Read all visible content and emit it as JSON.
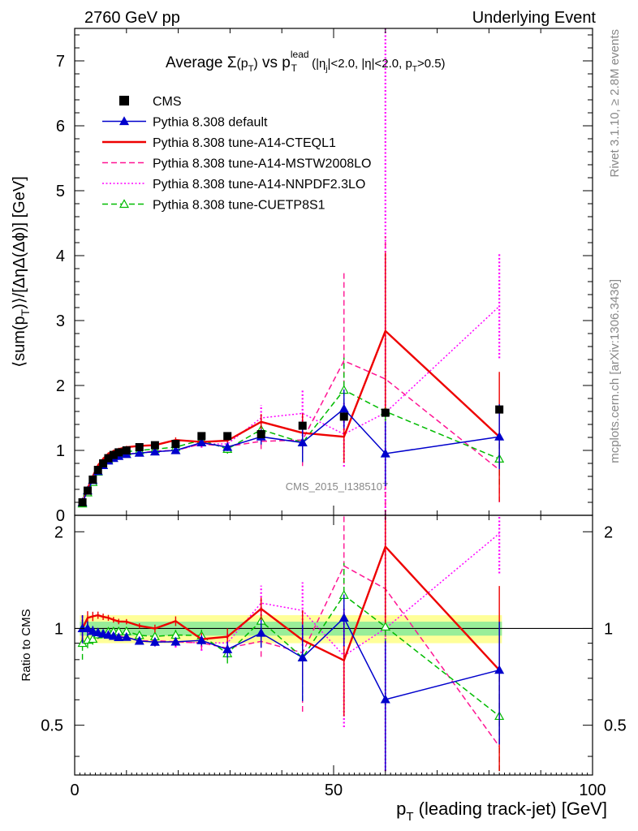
{
  "header": {
    "left": "2760 GeV pp",
    "right": "Underlying Event"
  },
  "side_labels": {
    "rivet": "Rivet 3.1.10, ≥ 2.8M events",
    "mcplots": "mcplots.cern.ch [arXiv:1306.3436]"
  },
  "watermark": "CMS_2015_I1385107",
  "chart_data": {
    "type": "line",
    "title": {
      "pre": "Average ",
      "sigma": "Σ",
      "pt_open": "(p",
      "pt_sub": "T",
      "pt_close": ")",
      "vs": " vs p",
      "lead_sup": "lead",
      "lead_sub": "T",
      "cuts1": " (|η",
      "cuts_sub_j": "j",
      "cuts2": "|<2.0, |η|<2.0, p",
      "cuts_sub_t": "T",
      "cuts3": ">0.5)"
    },
    "ylabel": {
      "open": "⟨sum(p",
      "sub": "T",
      "close": ")⟩/[ΔηΔ(Δϕ)] [GeV]"
    },
    "ratio_ylabel": "Ratio to CMS",
    "xlabel": {
      "p": "p",
      "sub": "T",
      "rest": " (leading track-jet) [GeV]"
    },
    "xlim": [
      0,
      100
    ],
    "ylim": [
      0,
      7.5
    ],
    "ratio_ylim": [
      0.35,
      2.25
    ],
    "x_ticks": [
      "0",
      "50",
      "100"
    ],
    "y_ticks": [
      "0",
      "1",
      "2",
      "3",
      "4",
      "5",
      "6",
      "7"
    ],
    "ratio_y_ticks": [
      "0.5",
      "1",
      "2"
    ],
    "ratio_band": {
      "green": [
        0.95,
        1.05
      ],
      "yellow": [
        0.9,
        1.1
      ]
    },
    "x": [
      1.5,
      2.5,
      3.5,
      4.5,
      5.5,
      6.5,
      7.5,
      8.5,
      10,
      12.5,
      15.5,
      19.5,
      24.5,
      29.5,
      36,
      44,
      52,
      60,
      82
    ],
    "data": {
      "name": "CMS",
      "values": [
        0.2,
        0.38,
        0.55,
        0.7,
        0.8,
        0.88,
        0.93,
        0.97,
        1.0,
        1.05,
        1.08,
        1.1,
        1.22,
        1.22,
        1.25,
        1.38,
        1.52,
        1.58,
        1.63
      ]
    },
    "series": [
      {
        "name": "Pythia 8.308 default",
        "color": "#0000cc",
        "style": "solid",
        "marker": "triangle-filled",
        "values": [
          0.2,
          0.38,
          0.54,
          0.68,
          0.77,
          0.84,
          0.88,
          0.91,
          0.94,
          0.96,
          0.98,
          1.0,
          1.12,
          1.05,
          1.21,
          1.12,
          1.64,
          0.95,
          1.21
        ],
        "errors": [
          0.02,
          0.02,
          0.02,
          0.02,
          0.02,
          0.02,
          0.02,
          0.02,
          0.02,
          0.02,
          0.03,
          0.03,
          0.04,
          0.06,
          0.12,
          0.3,
          0.3,
          0.5,
          0.5
        ]
      },
      {
        "name": "Pythia 8.308 tune-A14-CTEQL1",
        "color": "#ee0000",
        "style": "solid",
        "marker": "none",
        "values": [
          0.2,
          0.41,
          0.6,
          0.77,
          0.87,
          0.95,
          0.99,
          1.02,
          1.05,
          1.07,
          1.08,
          1.16,
          1.13,
          1.15,
          1.44,
          1.27,
          1.21,
          2.84,
          1.21
        ],
        "errors": [
          0.02,
          0.02,
          0.02,
          0.02,
          0.02,
          0.02,
          0.02,
          0.02,
          0.02,
          0.02,
          0.03,
          0.04,
          0.05,
          0.07,
          0.12,
          0.3,
          0.4,
          1.2,
          1.0
        ]
      },
      {
        "name": "Pythia 8.308 tune-A14-MSTW2008LO",
        "color": "#ff1493",
        "style": "dashed",
        "marker": "none",
        "values": [
          0.2,
          0.37,
          0.53,
          0.67,
          0.77,
          0.84,
          0.88,
          0.92,
          0.94,
          0.96,
          0.99,
          1.0,
          1.1,
          1.06,
          1.14,
          1.16,
          2.38,
          2.1,
          0.7
        ],
        "errors": [
          0.02,
          0.02,
          0.02,
          0.02,
          0.02,
          0.02,
          0.02,
          0.02,
          0.02,
          0.02,
          0.03,
          0.03,
          0.05,
          0.07,
          0.12,
          0.4,
          1.35,
          2.2,
          0.5
        ]
      },
      {
        "name": "Pythia 8.308 tune-A14-NNPDF2.3LO",
        "color": "#ff00ff",
        "style": "dotted",
        "marker": "none",
        "values": [
          0.2,
          0.37,
          0.53,
          0.67,
          0.77,
          0.84,
          0.88,
          0.92,
          0.94,
          0.96,
          0.98,
          1.0,
          1.1,
          1.1,
          1.5,
          1.57,
          1.25,
          1.58,
          3.22
        ],
        "errors": [
          0.02,
          0.02,
          0.02,
          0.02,
          0.02,
          0.02,
          0.02,
          0.02,
          0.02,
          0.02,
          0.03,
          0.04,
          0.06,
          0.08,
          0.2,
          0.35,
          0.5,
          6.0,
          0.8
        ]
      },
      {
        "name": "Pythia 8.308 tune-CUETP8S1",
        "color": "#00bb00",
        "style": "dashed",
        "marker": "triangle-open",
        "values": [
          0.18,
          0.35,
          0.51,
          0.67,
          0.77,
          0.86,
          0.91,
          0.95,
          0.98,
          1.0,
          1.02,
          1.05,
          1.16,
          1.02,
          1.32,
          1.12,
          1.93,
          1.6,
          0.87
        ],
        "errors": [
          0.02,
          0.02,
          0.02,
          0.02,
          0.02,
          0.02,
          0.02,
          0.02,
          0.02,
          0.02,
          0.03,
          0.04,
          0.05,
          0.07,
          0.15,
          0.3,
          0.5,
          0.7,
          0.4
        ]
      }
    ]
  }
}
